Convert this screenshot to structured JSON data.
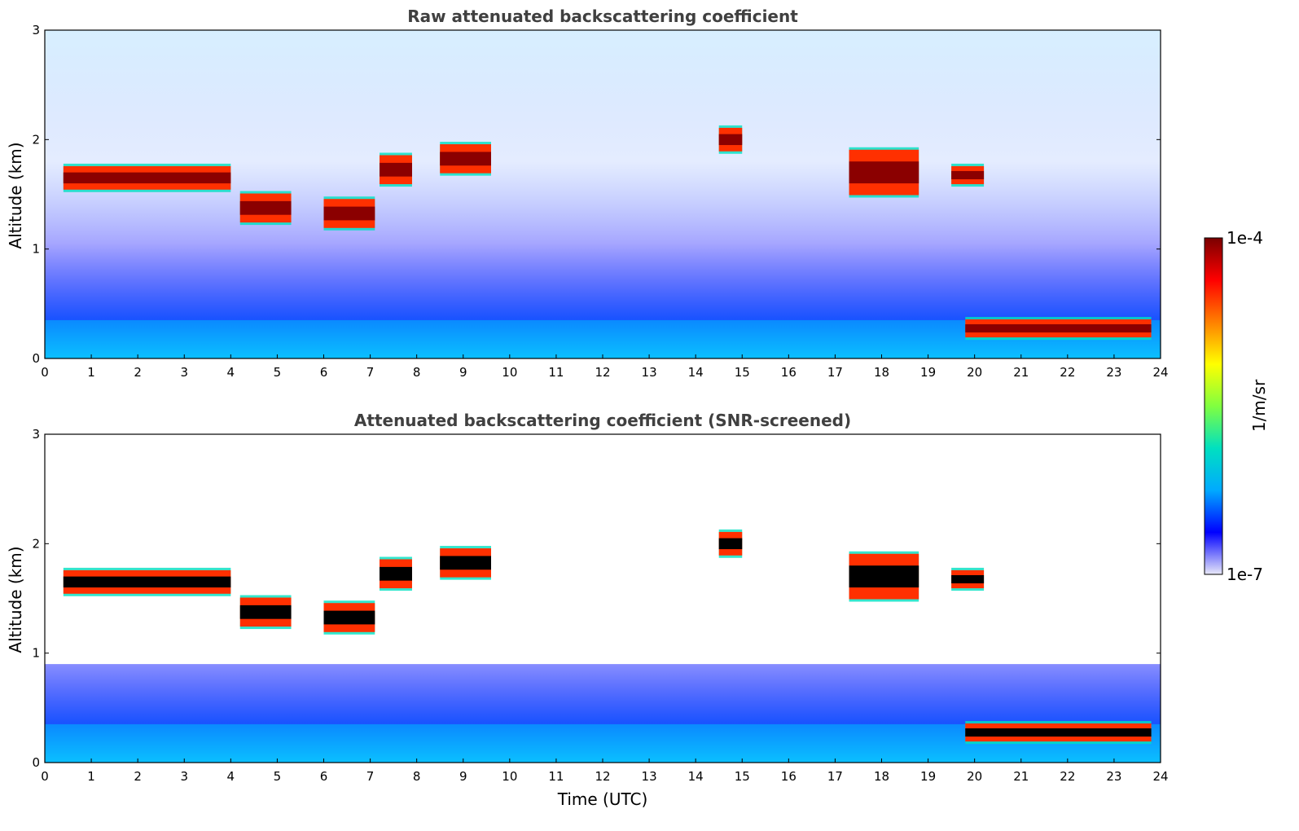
{
  "chart_data": [
    {
      "type": "heatmap",
      "title": "Raw attenuated backscattering coefficient",
      "xlabel": "",
      "ylabel": "Altitude (km)",
      "xlim": [
        0,
        24
      ],
      "ylim": [
        0,
        3
      ],
      "x_ticks": [
        "0",
        "1",
        "2",
        "3",
        "4",
        "5",
        "6",
        "7",
        "8",
        "9",
        "10",
        "11",
        "12",
        "13",
        "14",
        "15",
        "16",
        "17",
        "18",
        "19",
        "20",
        "21",
        "22",
        "23",
        "24"
      ],
      "y_ticks": [
        "0",
        "1",
        "2",
        "3"
      ],
      "screened": false,
      "cloud_layers": [
        {
          "t0": 0.4,
          "t1": 4.0,
          "base_km": 1.55,
          "top_km": 1.75
        },
        {
          "t0": 4.2,
          "t1": 5.3,
          "base_km": 1.25,
          "top_km": 1.5
        },
        {
          "t0": 6.0,
          "t1": 7.1,
          "base_km": 1.2,
          "top_km": 1.45
        },
        {
          "t0": 7.2,
          "t1": 7.9,
          "base_km": 1.6,
          "top_km": 1.85
        },
        {
          "t0": 8.5,
          "t1": 9.6,
          "base_km": 1.7,
          "top_km": 1.95
        },
        {
          "t0": 14.5,
          "t1": 15.0,
          "base_km": 1.9,
          "top_km": 2.1
        },
        {
          "t0": 17.3,
          "t1": 18.8,
          "base_km": 1.5,
          "top_km": 1.9
        },
        {
          "t0": 19.5,
          "t1": 20.2,
          "base_km": 1.6,
          "top_km": 1.75
        },
        {
          "t0": 19.8,
          "t1": 23.8,
          "base_km": 0.2,
          "top_km": 0.35
        }
      ]
    },
    {
      "type": "heatmap",
      "title": "Attenuated backscattering coefficient (SNR-screened)",
      "xlabel": "Time (UTC)",
      "ylabel": "Altitude (km)",
      "xlim": [
        0,
        24
      ],
      "ylim": [
        0,
        3
      ],
      "x_ticks": [
        "0",
        "1",
        "2",
        "3",
        "4",
        "5",
        "6",
        "7",
        "8",
        "9",
        "10",
        "11",
        "12",
        "13",
        "14",
        "15",
        "16",
        "17",
        "18",
        "19",
        "20",
        "21",
        "22",
        "23",
        "24"
      ],
      "y_ticks": [
        "0",
        "1",
        "2",
        "3"
      ],
      "screened": true,
      "cloud_layers": [
        {
          "t0": 0.4,
          "t1": 4.0,
          "base_km": 1.55,
          "top_km": 1.75
        },
        {
          "t0": 4.2,
          "t1": 5.3,
          "base_km": 1.25,
          "top_km": 1.5
        },
        {
          "t0": 6.0,
          "t1": 7.1,
          "base_km": 1.2,
          "top_km": 1.45
        },
        {
          "t0": 7.2,
          "t1": 7.9,
          "base_km": 1.6,
          "top_km": 1.85
        },
        {
          "t0": 8.5,
          "t1": 9.6,
          "base_km": 1.7,
          "top_km": 1.95
        },
        {
          "t0": 14.5,
          "t1": 15.0,
          "base_km": 1.9,
          "top_km": 2.1
        },
        {
          "t0": 17.3,
          "t1": 18.8,
          "base_km": 1.5,
          "top_km": 1.9
        },
        {
          "t0": 19.5,
          "t1": 20.2,
          "base_km": 1.6,
          "top_km": 1.75
        },
        {
          "t0": 19.8,
          "t1": 23.8,
          "base_km": 0.2,
          "top_km": 0.35
        }
      ]
    }
  ],
  "colorbar": {
    "label": "1/m/sr",
    "max_label": "1e-4",
    "min_label": "1e-7",
    "scale": "log",
    "colormap": [
      "#e8e8f8",
      "#0000ff",
      "#00aaff",
      "#00e0c0",
      "#80ff40",
      "#ffff00",
      "#ff8000",
      "#ff0000",
      "#7a0000"
    ]
  }
}
